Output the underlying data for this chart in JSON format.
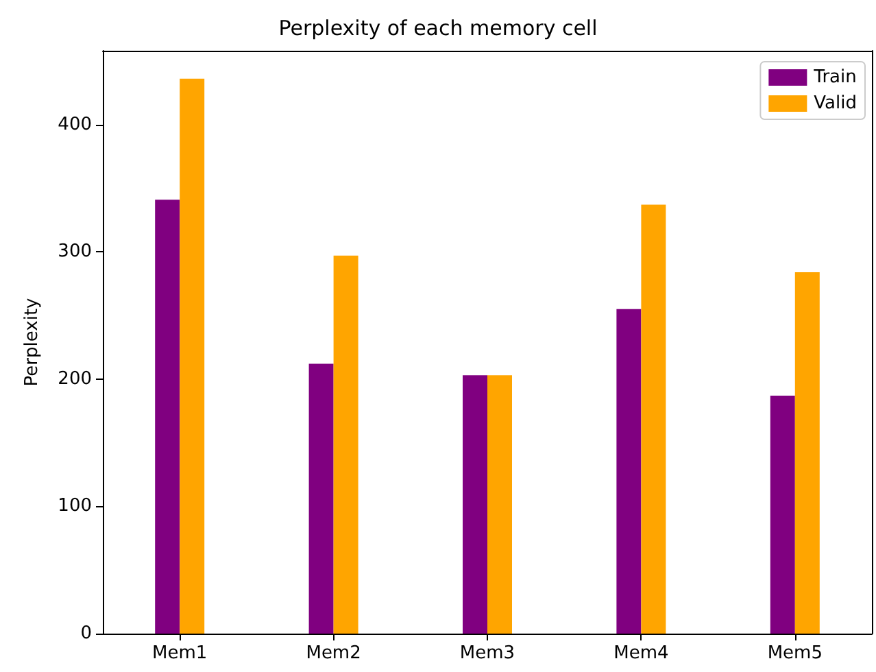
{
  "chart_data": {
    "type": "bar",
    "title": "Perplexity of each memory cell",
    "ylabel": "Perplexity",
    "categories": [
      "Mem1",
      "Mem2",
      "Mem3",
      "Mem4",
      "Mem5"
    ],
    "series": [
      {
        "name": "Train",
        "color": "#800080",
        "values": [
          341,
          212,
          203,
          255,
          187
        ]
      },
      {
        "name": "Valid",
        "color": "#ffa500",
        "values": [
          436,
          297,
          203,
          337,
          284
        ]
      }
    ],
    "ylim": [
      0,
      458
    ],
    "yticks": [
      0,
      100,
      200,
      300,
      400
    ],
    "grid": false,
    "legend": "top right"
  }
}
